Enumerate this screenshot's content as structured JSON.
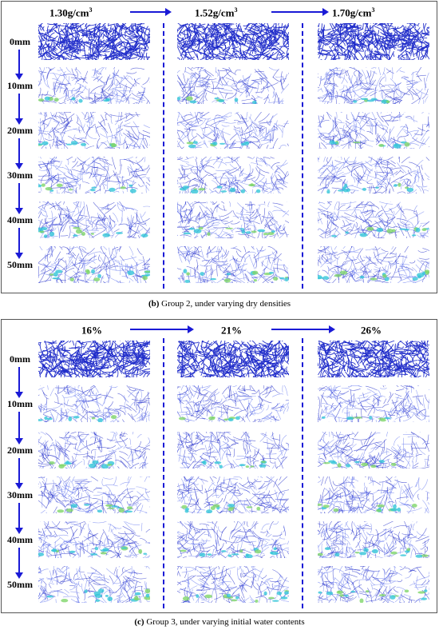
{
  "group2": {
    "columns": [
      {
        "base": "1.30g/cm",
        "sup": "3"
      },
      {
        "base": "1.52g/cm",
        "sup": "3"
      },
      {
        "base": "1.70g/cm",
        "sup": "3"
      }
    ],
    "rows": [
      "0mm",
      "10mm",
      "20mm",
      "30mm",
      "40mm",
      "50mm"
    ],
    "caption_letter": "(b)",
    "caption_text": " Group 2, under varying dry densities"
  },
  "group3": {
    "columns": [
      {
        "base": "16%",
        "sup": ""
      },
      {
        "base": "21%",
        "sup": ""
      },
      {
        "base": "26%",
        "sup": ""
      }
    ],
    "rows": [
      "0mm",
      "10mm",
      "20mm",
      "30mm",
      "40mm",
      "50mm"
    ],
    "caption_letter": "(c)",
    "caption_text": " Group 3, under varying initial water contents"
  },
  "colors": {
    "arrow": "#1a1ad6",
    "fracture_dense": "#1f2bc9",
    "fracture_light": "#6a7cf0",
    "fracture_damage": "#35c6d8"
  },
  "images": {
    "description_icon": "particle-network-fracture-image"
  }
}
